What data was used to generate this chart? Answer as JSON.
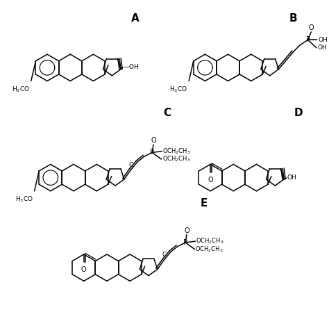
{
  "background_color": "#ffffff",
  "label_A": "A",
  "label_B": "B",
  "label_C": "C",
  "label_D": "D",
  "label_E": "E",
  "figsize": [
    4.74,
    4.46
  ],
  "dpi": 100
}
